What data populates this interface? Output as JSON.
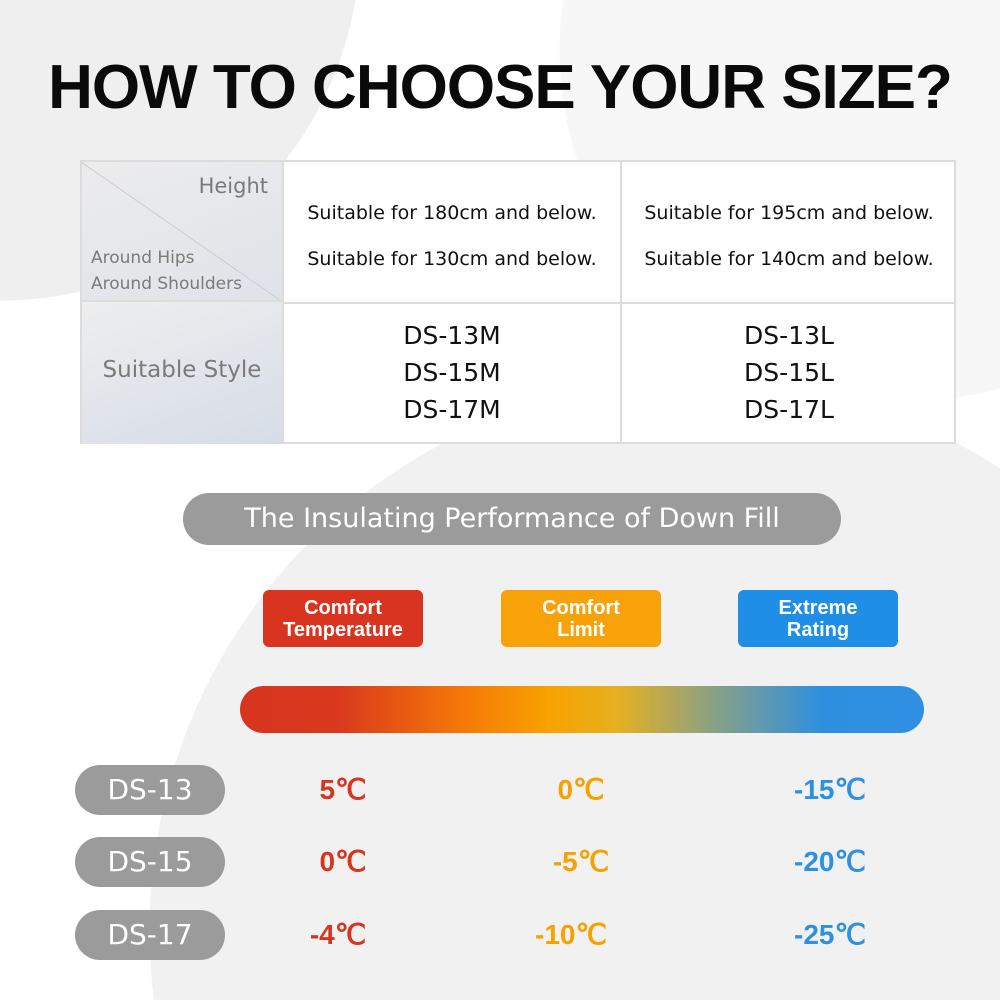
{
  "title": "HOW TO CHOOSE YOUR SIZE?",
  "size_table": {
    "header_height": "Height",
    "header_hips": "Around Hips",
    "header_shoulders": "Around Shoulders",
    "header_style": "Suitable Style",
    "columns": [
      {
        "height": "Suitable for 180cm and below.",
        "hips": "Suitable for 130cm and below.",
        "styles": [
          "DS-13M",
          "DS-15M",
          "DS-17M"
        ]
      },
      {
        "height": "Suitable for 195cm and below.",
        "hips": "Suitable for 140cm and below.",
        "styles": [
          "DS-13L",
          "DS-15L",
          "DS-17L"
        ]
      }
    ]
  },
  "insulation": {
    "banner": "The Insulating Performance of Down Fill",
    "tags": [
      {
        "line1": "Comfort",
        "line2": "Temperature",
        "color": "#d9341f"
      },
      {
        "line1": "Comfort",
        "line2": "Limit",
        "color": "#f5a200"
      },
      {
        "line1": "Extreme",
        "line2": "Rating",
        "color": "#2f90df"
      }
    ],
    "rows": [
      {
        "model": "DS-13",
        "comfort": "5℃",
        "limit": "0℃",
        "extreme": "-15℃"
      },
      {
        "model": "DS-15",
        "comfort": "0℃",
        "limit": "-5℃",
        "extreme": "-20℃"
      },
      {
        "model": "DS-17",
        "comfort": "-4℃",
        "limit": "-10℃",
        "extreme": "-25℃"
      }
    ]
  }
}
